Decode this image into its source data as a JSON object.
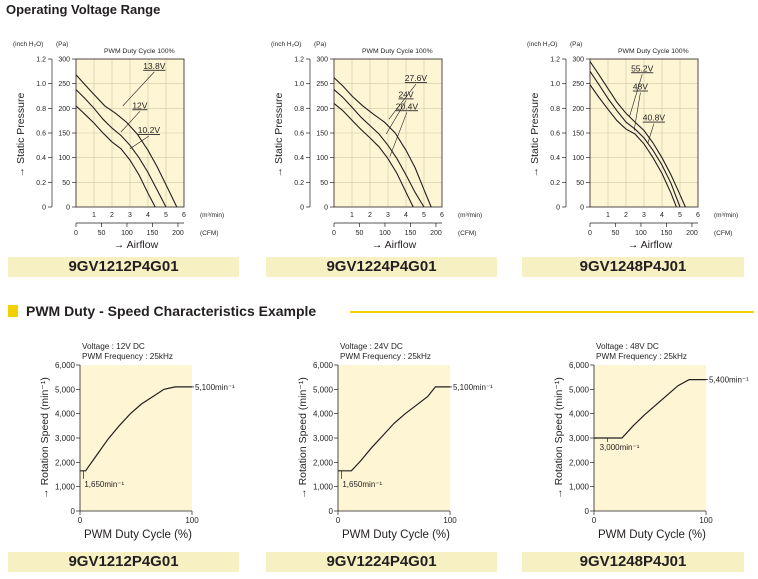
{
  "page_title": "Operating Voltage Range",
  "section2_title": "PWM Duty - Speed Characteristics Example",
  "colors": {
    "plot_bg": "#fdf5d4",
    "grid": "#cfc9a8",
    "accent": "#f1d200",
    "label_bg": "#f7f0c2",
    "line": "#231f20"
  },
  "pq_common": {
    "y_unit_inch": "(inch H₂O)",
    "y_unit_pa": "(Pa)",
    "ylabel": "→ Static Pressure",
    "xlabel": "→ Airflow",
    "x_unit_m3": "(m³/min)",
    "x_unit_cfm": "(CFM)",
    "pa_ticks": [
      "300",
      "250",
      "200",
      "150",
      "100",
      "50",
      "0"
    ],
    "inch_ticks": [
      "1.2",
      "1.0",
      "0.8",
      "0.6",
      "0.4",
      "0.2",
      "0"
    ],
    "m3_ticks": [
      "0",
      "1",
      "2",
      "3",
      "4",
      "5",
      "6"
    ],
    "cfm_ticks": [
      "0",
      "50",
      "100",
      "150",
      "200"
    ],
    "note": "PWM Duty Cycle 100%"
  },
  "duty_common": {
    "xlabel": "PWM Duty Cycle (%)",
    "ylabel": "→ Rotation Speed (min⁻¹)",
    "y_ticks": [
      "6,000",
      "5,000",
      "4,000",
      "3,000",
      "2,000",
      "1,000",
      "0"
    ],
    "x_ticks": [
      "0",
      "100"
    ]
  },
  "chart_data": [
    {
      "type": "line",
      "model": "9GV1212P4G01",
      "title": "PWM Duty Cycle 100%",
      "xlabel": "Airflow (m³/min)",
      "ylabel": "Static Pressure (Pa)",
      "xlim": [
        0,
        6
      ],
      "ylim": [
        0,
        300
      ],
      "series": [
        {
          "name": "13.8V",
          "x": [
            0,
            0.5,
            1.0,
            1.6,
            2.2,
            2.8,
            3.4,
            4.0,
            4.5,
            5.0,
            5.6
          ],
          "y": [
            268,
            248,
            228,
            205,
            190,
            172,
            148,
            115,
            82,
            45,
            0
          ]
        },
        {
          "name": "12V",
          "x": [
            0,
            0.5,
            1.0,
            1.5,
            2.0,
            2.5,
            3.0,
            3.5,
            4.0,
            4.5,
            5.0
          ],
          "y": [
            238,
            220,
            200,
            178,
            160,
            145,
            125,
            100,
            70,
            35,
            0
          ]
        },
        {
          "name": "10.2V",
          "x": [
            0,
            0.5,
            1.0,
            1.5,
            2.0,
            2.5,
            3.0,
            3.5,
            4.0,
            4.4
          ],
          "y": [
            205,
            188,
            170,
            150,
            132,
            118,
            95,
            65,
            28,
            0
          ]
        }
      ],
      "annotations": [
        "13.8V",
        "12V",
        "10.2V"
      ]
    },
    {
      "type": "line",
      "model": "9GV1224P4G01",
      "title": "PWM Duty Cycle 100%",
      "xlabel": "Airflow (m³/min)",
      "ylabel": "Static Pressure (Pa)",
      "xlim": [
        0,
        6
      ],
      "ylim": [
        0,
        300
      ],
      "series": [
        {
          "name": "27.6V",
          "x": [
            0,
            0.5,
            1.0,
            1.6,
            2.2,
            2.8,
            3.4,
            4.0,
            4.5,
            5.0,
            5.4
          ],
          "y": [
            262,
            245,
            225,
            205,
            188,
            172,
            150,
            115,
            80,
            35,
            0
          ]
        },
        {
          "name": "24V",
          "x": [
            0,
            0.5,
            1.0,
            1.5,
            2.0,
            2.5,
            3.0,
            3.5,
            4.0,
            4.5,
            5.0
          ],
          "y": [
            238,
            222,
            202,
            182,
            165,
            148,
            125,
            98,
            65,
            30,
            0
          ]
        },
        {
          "name": "20.4V",
          "x": [
            0,
            0.5,
            1.0,
            1.5,
            2.0,
            2.5,
            3.0,
            3.5,
            4.0,
            4.4
          ],
          "y": [
            210,
            195,
            176,
            157,
            140,
            122,
            98,
            68,
            30,
            0
          ]
        }
      ],
      "annotations": [
        "27.6V",
        "24V",
        "20.4V"
      ]
    },
    {
      "type": "line",
      "model": "9GV1248P4J01",
      "title": "PWM Duty Cycle 100%",
      "xlabel": "Airflow (m³/min)",
      "ylabel": "Static Pressure (Pa)",
      "xlim": [
        0,
        6
      ],
      "ylim": [
        0,
        300
      ],
      "series": [
        {
          "name": "55.2V",
          "x": [
            0,
            0.5,
            1.0,
            1.5,
            2.0,
            2.5,
            3.0,
            3.5,
            4.0,
            4.5,
            5.0,
            5.3
          ],
          "y": [
            295,
            268,
            240,
            212,
            190,
            172,
            155,
            130,
            100,
            65,
            25,
            0
          ]
        },
        {
          "name": "48V",
          "x": [
            0,
            0.5,
            1.0,
            1.5,
            2.0,
            2.5,
            3.0,
            3.5,
            4.0,
            4.5,
            5.0
          ],
          "y": [
            275,
            248,
            220,
            195,
            172,
            158,
            140,
            115,
            85,
            48,
            0
          ]
        },
        {
          "name": "40.8V",
          "x": [
            0,
            0.5,
            1.0,
            1.5,
            2.0,
            2.5,
            3.0,
            3.5,
            4.0,
            4.5,
            4.8
          ],
          "y": [
            248,
            222,
            198,
            175,
            158,
            148,
            128,
            100,
            68,
            28,
            0
          ]
        }
      ],
      "annotations": [
        "55.2V",
        "48V",
        "40.8V"
      ]
    },
    {
      "type": "line",
      "model": "9GV1212P4G01",
      "title": "Voltage : 12V DC / PWM Frequency : 25kHz",
      "info1": "Voltage : 12V DC",
      "info2": "PWM Frequency : 25kHz",
      "xlabel": "PWM Duty Cycle (%)",
      "ylabel": "Rotation Speed (min⁻¹)",
      "xlim": [
        0,
        100
      ],
      "ylim": [
        0,
        6000
      ],
      "series": [
        {
          "name": "speed",
          "x": [
            0,
            5,
            15,
            25,
            35,
            45,
            55,
            65,
            75,
            85,
            90,
            100
          ],
          "y": [
            1650,
            1650,
            2300,
            2950,
            3500,
            4000,
            4400,
            4700,
            5000,
            5100,
            5100,
            5100
          ]
        }
      ],
      "annotations": [
        {
          "text": "1,650min⁻¹",
          "value": 1650
        },
        {
          "text": "5,100min⁻¹",
          "value": 5100
        }
      ]
    },
    {
      "type": "line",
      "model": "9GV1224P4G01",
      "title": "Voltage : 24V DC / PWM Frequency : 25kHz",
      "info1": "Voltage : 24V DC",
      "info2": "PWM Frequency : 25kHz",
      "xlabel": "PWM Duty Cycle (%)",
      "ylabel": "Rotation Speed (min⁻¹)",
      "xlim": [
        0,
        100
      ],
      "ylim": [
        0,
        6000
      ],
      "series": [
        {
          "name": "speed",
          "x": [
            0,
            12,
            20,
            30,
            40,
            50,
            60,
            70,
            80,
            87,
            90,
            100
          ],
          "y": [
            1650,
            1650,
            2050,
            2600,
            3100,
            3600,
            4000,
            4350,
            4700,
            5100,
            5100,
            5100
          ]
        }
      ],
      "annotations": [
        {
          "text": "1,650min⁻¹",
          "value": 1650
        },
        {
          "text": "5,100min⁻¹",
          "value": 5100
        }
      ]
    },
    {
      "type": "line",
      "model": "9GV1248P4J01",
      "title": "Voltage : 48V DC / PWM Frequency : 25kHz",
      "info1": "Voltage : 48V DC",
      "info2": "PWM Frequency : 25kHz",
      "xlabel": "PWM Duty Cycle (%)",
      "ylabel": "Rotation Speed (min⁻¹)",
      "xlim": [
        0,
        100
      ],
      "ylim": [
        0,
        6000
      ],
      "series": [
        {
          "name": "speed",
          "x": [
            0,
            25,
            35,
            45,
            55,
            65,
            75,
            85,
            90,
            100
          ],
          "y": [
            3000,
            3000,
            3500,
            3950,
            4350,
            4750,
            5150,
            5400,
            5400,
            5400
          ]
        }
      ],
      "annotations": [
        {
          "text": "3,000min⁻¹",
          "value": 3000
        },
        {
          "text": "5,400min⁻¹",
          "value": 5400
        }
      ]
    }
  ]
}
